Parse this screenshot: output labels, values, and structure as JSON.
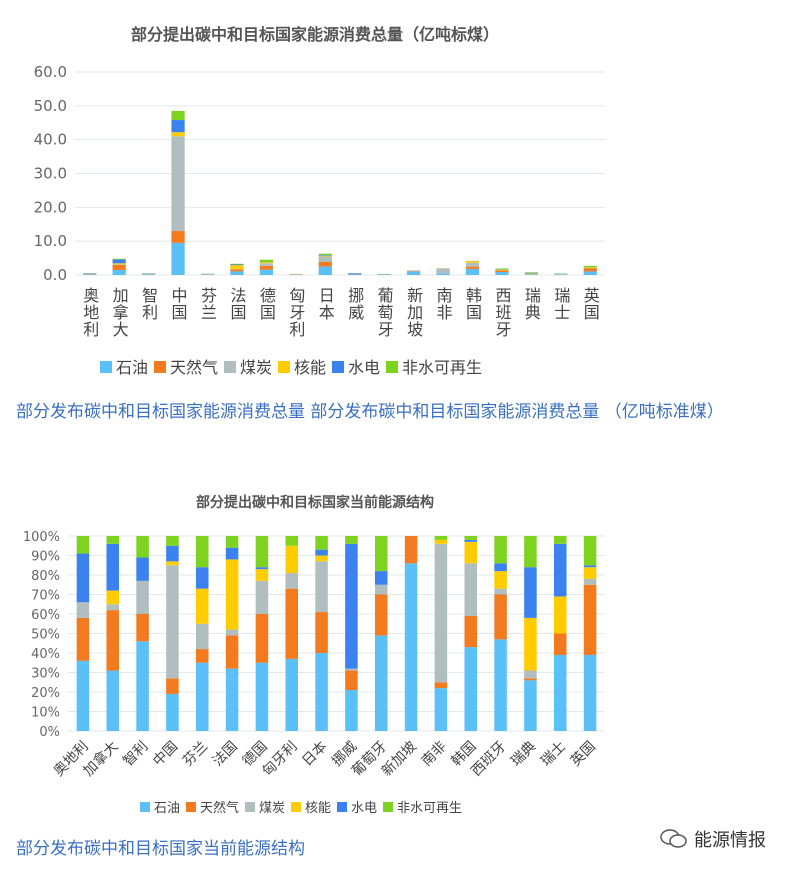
{
  "colors": {
    "石油": "#5bc0f8",
    "天然气": "#f47a20",
    "煤炭": "#b0bec0",
    "核能": "#ffcc00",
    "水电": "#3b82f0",
    "非水可再生": "#7ed321"
  },
  "chart_data": [
    {
      "type": "bar",
      "stacked": true,
      "title": "部分提出碳中和目标国家能源消费总量（亿吨标煤）",
      "ylim": [
        0,
        60
      ],
      "yticks": [
        "0.0",
        "10.0",
        "20.0",
        "30.0",
        "40.0",
        "50.0",
        "60.0"
      ],
      "grid": true,
      "legend": "bottom",
      "categories": [
        "奥地利",
        "加拿大",
        "智利",
        "中国",
        "芬兰",
        "法国",
        "德国",
        "匈牙利",
        "日本",
        "挪威",
        "葡萄牙",
        "新加坡",
        "南非",
        "韩国",
        "西班牙",
        "瑞典",
        "瑞士",
        "英国"
      ],
      "series": [
        {
          "name": "石油",
          "values": [
            0.18,
            1.49,
            0.23,
            9.5,
            0.14,
            1.06,
            1.58,
            0.11,
            2.52,
            0.11,
            0.15,
            1.12,
            0.44,
            1.81,
            0.89,
            0.21,
            0.16,
            1.05
          ]
        },
        {
          "name": "天然气",
          "values": [
            0.11,
            1.49,
            0.07,
            3.5,
            0.03,
            0.56,
            1.13,
            0.11,
            1.32,
            0.05,
            0.06,
            0.18,
            0.06,
            0.67,
            0.44,
            0.01,
            0.04,
            0.97
          ]
        },
        {
          "name": "煤炭",
          "values": [
            0.04,
            0.14,
            0.09,
            28.0,
            0.05,
            0.1,
            0.77,
            0.02,
            1.64,
            0.01,
            0.02,
            0,
            1.42,
            1.13,
            0.06,
            0.03,
            0,
            0.08
          ]
        },
        {
          "name": "核能",
          "values": [
            0,
            0.34,
            0,
            1.2,
            0.07,
            1.19,
            0.27,
            0.04,
            0.19,
            0,
            0,
            0,
            0.04,
            0.46,
            0.17,
            0.22,
            0.08,
            0.16
          ]
        },
        {
          "name": "水电",
          "values": [
            0.13,
            1.15,
            0.06,
            3.6,
            0.04,
            0.2,
            0.05,
            0,
            0.19,
            0.32,
            0.02,
            0,
            0,
            0.04,
            0.08,
            0.21,
            0.11,
            0.03
          ]
        },
        {
          "name": "非水可再生",
          "values": [
            0.05,
            0.19,
            0.06,
            2.7,
            0.06,
            0.2,
            0.72,
            0.02,
            0.44,
            0.02,
            0.05,
            0,
            0.04,
            0.08,
            0.27,
            0.13,
            0.02,
            0.41
          ]
        }
      ]
    },
    {
      "type": "bar",
      "stacked": true,
      "title": "部分提出碳中和目标国家当前能源结构",
      "ylim": [
        0,
        100
      ],
      "yticks": [
        "0%",
        "10%",
        "20%",
        "30%",
        "40%",
        "50%",
        "60%",
        "70%",
        "80%",
        "90%",
        "100%"
      ],
      "grid": true,
      "legend": "bottom",
      "categories": [
        "奥地利",
        "加拿大",
        "智利",
        "中国",
        "芬兰",
        "法国",
        "德国",
        "匈牙利",
        "日本",
        "挪威",
        "葡萄牙",
        "新加坡",
        "南非",
        "韩国",
        "西班牙",
        "瑞典",
        "瑞士",
        "英国"
      ],
      "series": [
        {
          "name": "石油",
          "values": [
            36,
            31,
            46,
            19,
            35,
            32,
            35,
            37,
            40,
            21,
            49,
            86,
            22,
            43,
            47,
            26,
            39,
            39
          ]
        },
        {
          "name": "天然气",
          "values": [
            22,
            31,
            14,
            8,
            7,
            17,
            25,
            36,
            21,
            10,
            21,
            14,
            3,
            16,
            23,
            1,
            11,
            36
          ]
        },
        {
          "name": "煤炭",
          "values": [
            8,
            3,
            17,
            58,
            13,
            3,
            17,
            8,
            26,
            1,
            5,
            0,
            71,
            27,
            3,
            4,
            0,
            3
          ]
        },
        {
          "name": "核能",
          "values": [
            0,
            7,
            0,
            2,
            18,
            36,
            6,
            14,
            3,
            0,
            0,
            0,
            2,
            11,
            9,
            27,
            19,
            6
          ]
        },
        {
          "name": "水电",
          "values": [
            25,
            24,
            12,
            8,
            11,
            6,
            1,
            0,
            3,
            64,
            7,
            0,
            0,
            1,
            4,
            26,
            27,
            1
          ]
        },
        {
          "name": "非水可再生",
          "values": [
            9,
            4,
            11,
            5,
            16,
            6,
            16,
            5,
            7,
            4,
            18,
            0,
            2,
            2,
            14,
            16,
            4,
            15
          ]
        }
      ]
    }
  ],
  "captions": [
    "部分发布碳中和目标国家能源消费总量 部分发布碳中和目标国家能源消费总量 （亿吨标准煤）",
    "部分发布碳中和目标国家当前能源结构"
  ],
  "watermark": {
    "icon": "wechat-icon",
    "text": "能源情报"
  }
}
